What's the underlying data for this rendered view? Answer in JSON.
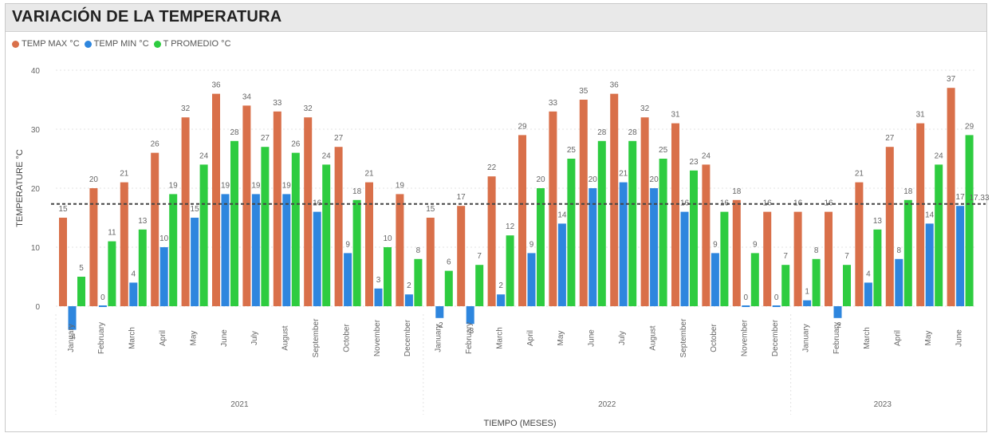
{
  "header": {
    "title": "VARIACIÓN DE LA TEMPERATURA"
  },
  "colors": {
    "max": "#d9704a",
    "min": "#2e86de",
    "avg": "#2ecc40",
    "avgline": "#444444"
  },
  "chart_data": {
    "type": "bar",
    "ylabel": "TEMPERATURE °C",
    "xlabel": "TIEMPO (MESES)",
    "ylim": [
      -5,
      40
    ],
    "yticks": [
      0,
      10,
      20,
      30,
      40
    ],
    "grid": true,
    "legend_position": "top-left",
    "categories": [
      "January",
      "February",
      "March",
      "April",
      "May",
      "June",
      "July",
      "August",
      "September",
      "October",
      "November",
      "December",
      "January",
      "February",
      "March",
      "April",
      "May",
      "June",
      "July",
      "August",
      "September",
      "October",
      "November",
      "December",
      "January",
      "February",
      "March",
      "April",
      "May",
      "June"
    ],
    "years": [
      {
        "label": "2021",
        "count": 12
      },
      {
        "label": "2022",
        "count": 12
      },
      {
        "label": "2023",
        "count": 6
      }
    ],
    "series": [
      {
        "name": "TEMP MAX °C",
        "key": "max",
        "values": [
          15,
          20,
          21,
          26,
          32,
          36,
          34,
          33,
          32,
          27,
          21,
          19,
          15,
          17,
          22,
          29,
          33,
          35,
          36,
          32,
          31,
          24,
          18,
          16,
          16,
          16,
          21,
          27,
          31,
          37
        ],
        "labels": [
          "15",
          "20",
          "21",
          "26",
          "32",
          "36",
          "34",
          "33",
          "32",
          "27",
          "21",
          "19",
          "15",
          "17",
          "22",
          "29",
          "33",
          "35",
          "36",
          "32",
          "31",
          "24",
          "18",
          "16",
          "16",
          "16",
          "21",
          "27",
          "31",
          "37"
        ]
      },
      {
        "name": "TEMP MIN °C",
        "key": "min",
        "values": [
          -4,
          0,
          4,
          10,
          15,
          19,
          19,
          19,
          16,
          9,
          3,
          2,
          -2,
          -3,
          2,
          9,
          14,
          20,
          21,
          20,
          16,
          9,
          0,
          0,
          1,
          -2,
          4,
          8,
          14,
          17
        ],
        "labels": [
          "-4",
          "0",
          "4",
          "10",
          "15",
          "19",
          "19",
          "19",
          "16",
          "9",
          "3",
          "2",
          "-2",
          "-3",
          "2",
          "9",
          "14",
          "20",
          "21",
          "20",
          "16",
          "9",
          "0",
          "0",
          "1",
          "-2",
          "4",
          "8",
          "14",
          "17"
        ]
      },
      {
        "name": "T PROMEDIO °C",
        "key": "avg",
        "values": [
          5,
          11,
          13,
          19,
          24,
          28,
          27,
          26,
          24,
          18,
          10,
          8,
          6,
          7,
          12,
          20,
          25,
          28,
          28,
          25,
          23,
          16,
          9,
          7,
          8,
          7,
          13,
          18,
          24,
          29
        ],
        "labels": [
          "5",
          "11",
          "13",
          "19",
          "24",
          "28",
          "27",
          "26",
          "24",
          "18",
          "10",
          "8",
          "6",
          "7",
          "12",
          "20",
          "25",
          "28",
          "28",
          "25",
          "23",
          "16",
          "9",
          "7",
          "8",
          "7",
          "13",
          "18",
          "24",
          "29"
        ]
      }
    ],
    "reference_line": {
      "value": 17.33,
      "label": "17.33"
    }
  }
}
